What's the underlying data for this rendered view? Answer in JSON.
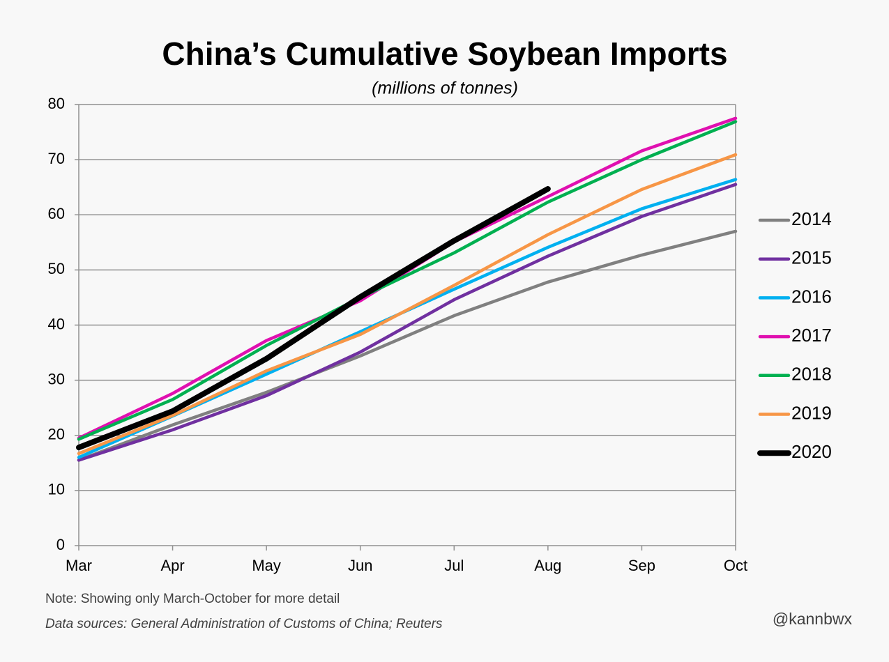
{
  "chart_data": {
    "type": "line",
    "title": "China’s Cumulative Soybean Imports",
    "subtitle": "(millions of tonnes)",
    "categories": [
      "Mar",
      "Apr",
      "May",
      "Jun",
      "Jul",
      "Aug",
      "Sep",
      "Oct"
    ],
    "series": [
      {
        "name": "2014",
        "color": "#808080",
        "values": [
          15.5,
          21.9,
          27.8,
          34.4,
          41.7,
          47.8,
          52.7,
          57.0
        ]
      },
      {
        "name": "2015",
        "color": "#7030a0",
        "values": [
          15.5,
          21.0,
          27.2,
          35.1,
          44.6,
          52.5,
          59.7,
          65.5
        ]
      },
      {
        "name": "2016",
        "color": "#00b0f0",
        "values": [
          16.0,
          23.5,
          31.1,
          38.8,
          46.5,
          54.1,
          61.1,
          66.4
        ]
      },
      {
        "name": "2017",
        "color": "#e010b0",
        "values": [
          19.5,
          27.6,
          37.2,
          44.4,
          55.1,
          63.3,
          71.6,
          77.5
        ]
      },
      {
        "name": "2018",
        "color": "#00b050",
        "values": [
          19.3,
          26.5,
          36.3,
          45.0,
          53.1,
          62.3,
          70.0,
          76.9
        ]
      },
      {
        "name": "2019",
        "color": "#f79646",
        "values": [
          16.7,
          23.6,
          31.7,
          38.3,
          47.2,
          56.4,
          64.6,
          70.9
        ]
      },
      {
        "name": "2020",
        "color": "#000000",
        "values": [
          17.8,
          24.4,
          33.9,
          45.1,
          55.3,
          64.7,
          null,
          null
        ]
      }
    ],
    "ylim": [
      0,
      80
    ],
    "yticks": [
      0,
      10,
      20,
      30,
      40,
      50,
      60,
      70,
      80
    ],
    "grid": true,
    "legend": "right",
    "note": "Note: Showing only March-October for more detail",
    "source": "Data sources: General Administration of Customs of China; Reuters",
    "credit": "@kannbwx"
  }
}
